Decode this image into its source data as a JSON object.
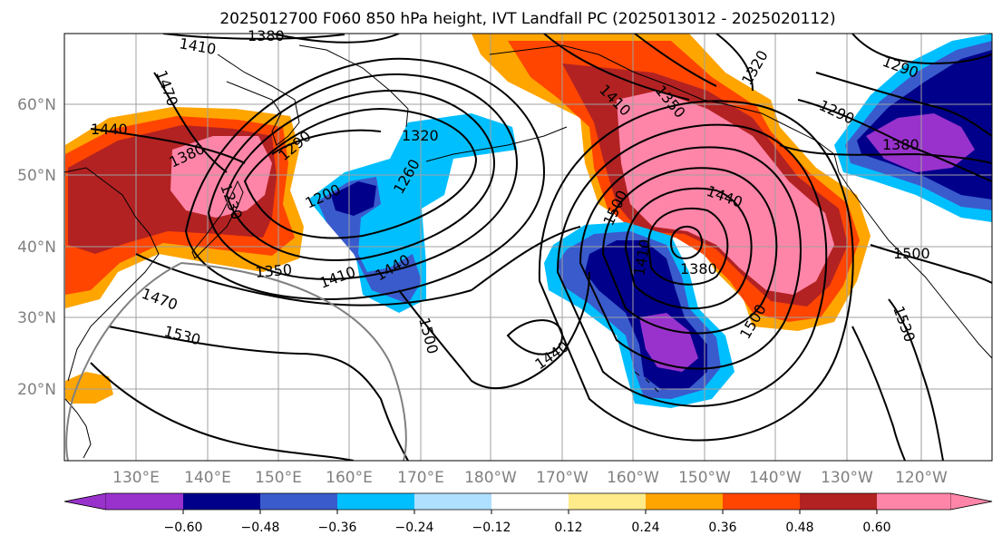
{
  "title": "2025012700 F060 850 hPa height, IVT Landfall PC (2025013012 - 2025020112)",
  "latitude_labels": [
    "60°N",
    "50°N",
    "40°N",
    "30°N",
    "20°N"
  ],
  "longitude_labels": [
    "130°E",
    "140°E",
    "150°E",
    "160°E",
    "170°E",
    "180°W",
    "170°W",
    "160°W",
    "150°W",
    "140°W",
    "130°W",
    "120°W"
  ],
  "colorbar": {
    "colors": [
      "#9932CC",
      "#00008B",
      "#3A5BCC",
      "#00BFFF",
      "#B0E0FF",
      "#FFFFFF",
      "#FFEB8A",
      "#FFA500",
      "#FF4500",
      "#B22222",
      "#FF85A8"
    ],
    "tick_labels": [
      "−0.60",
      "−0.48",
      "−0.36",
      "−0.24",
      "−0.12",
      "0.12",
      "0.24",
      "0.36",
      "0.48",
      "0.60"
    ]
  },
  "contour_labels": [
    "1380",
    "1410",
    "1470",
    "1440",
    "1380",
    "1290",
    "1320",
    "1260",
    "1200",
    "1230",
    "1350",
    "1410",
    "1440",
    "1470",
    "1530",
    "1500",
    "1440",
    "1500",
    "1410",
    "1440",
    "1380",
    "1410",
    "1350",
    "1500",
    "1320",
    "1290",
    "1290",
    "1380",
    "1500",
    "1530"
  ]
}
